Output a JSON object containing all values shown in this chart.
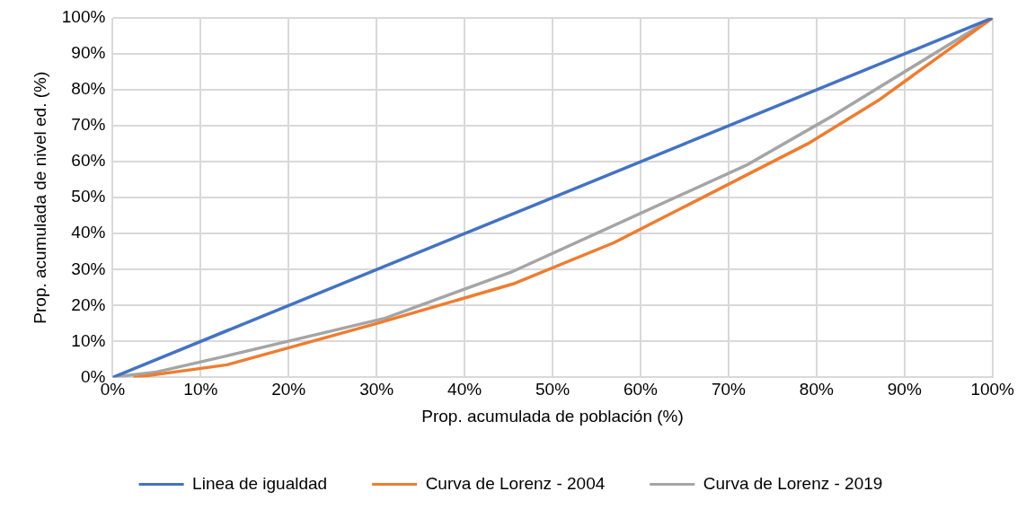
{
  "chart_data": {
    "type": "line",
    "xlabel": "Prop. acumulada de población (%)",
    "ylabel": "Prop. acumulada de nivel ed. (%)",
    "series": [
      {
        "name": "Linea de igualdad",
        "color": "#4472c4",
        "x": [
          0,
          100
        ],
        "values": [
          0,
          100
        ]
      },
      {
        "name": "Curva de Lorenz - 2004",
        "color": "#ed7d31",
        "x": [
          2.5,
          13,
          30,
          45.5,
          57,
          79,
          87,
          100
        ],
        "values": [
          0,
          3.5,
          15,
          26,
          37.5,
          65,
          77,
          100
        ]
      },
      {
        "name": "Curva de Lorenz - 2019",
        "color": "#a5a5a5",
        "x": [
          0.7,
          5,
          13,
          31,
          45.5,
          72,
          82,
          100
        ],
        "values": [
          0.3,
          1.5,
          6,
          16.5,
          29.5,
          59,
          73,
          100
        ]
      }
    ],
    "xlim": [
      0,
      100
    ],
    "ylim": [
      0,
      100
    ],
    "xticks": [
      {
        "value": 0,
        "label": "0%"
      },
      {
        "value": 10,
        "label": "10%"
      },
      {
        "value": 20,
        "label": "20%"
      },
      {
        "value": 30,
        "label": "30%"
      },
      {
        "value": 40,
        "label": "40%"
      },
      {
        "value": 50,
        "label": "50%"
      },
      {
        "value": 60,
        "label": "60%"
      },
      {
        "value": 70,
        "label": "70%"
      },
      {
        "value": 80,
        "label": "80%"
      },
      {
        "value": 90,
        "label": "90%"
      },
      {
        "value": 100,
        "label": "100%"
      }
    ],
    "yticks": [
      {
        "value": 0,
        "label": "0%"
      },
      {
        "value": 10,
        "label": "10%"
      },
      {
        "value": 20,
        "label": "20%"
      },
      {
        "value": 30,
        "label": "30%"
      },
      {
        "value": 40,
        "label": "40%"
      },
      {
        "value": 50,
        "label": "50%"
      },
      {
        "value": 60,
        "label": "60%"
      },
      {
        "value": 70,
        "label": "70%"
      },
      {
        "value": 80,
        "label": "80%"
      },
      {
        "value": 90,
        "label": "90%"
      },
      {
        "value": 100,
        "label": "100%"
      }
    ],
    "grid": true,
    "legend": "bottom",
    "marker": "none",
    "line_style": "solid"
  }
}
